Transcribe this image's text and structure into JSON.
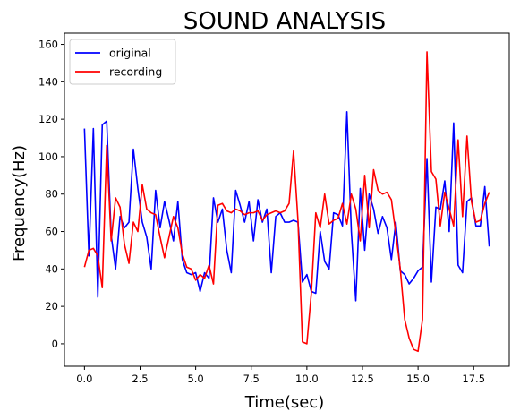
{
  "chart_data": {
    "type": "line",
    "title": "SOUND ANALYSIS",
    "xlabel": "Time(sec)",
    "ylabel": "Frequency(Hz)",
    "xlim": [
      -0.9,
      19.1
    ],
    "ylim": [
      -12,
      166
    ],
    "xticks": [
      0,
      2.5,
      5,
      7.5,
      10,
      12.5,
      15,
      17.5
    ],
    "xtick_labels": [
      "0.0",
      "2.5",
      "5.0",
      "7.5",
      "10.0",
      "12.5",
      "15.0",
      "17.5"
    ],
    "yticks": [
      0,
      20,
      40,
      60,
      80,
      100,
      120,
      140,
      160
    ],
    "ytick_labels": [
      "0",
      "20",
      "40",
      "60",
      "80",
      "100",
      "120",
      "140",
      "160"
    ],
    "grid": false,
    "legend_position": "upper-left",
    "series": [
      {
        "name": "original",
        "color": "#0000ff",
        "points": [
          [
            0.0,
            115
          ],
          [
            0.2,
            47
          ],
          [
            0.4,
            115
          ],
          [
            0.6,
            25
          ],
          [
            0.8,
            117
          ],
          [
            1.0,
            119
          ],
          [
            1.2,
            58
          ],
          [
            1.4,
            40
          ],
          [
            1.6,
            68
          ],
          [
            1.8,
            62
          ],
          [
            2.0,
            65
          ],
          [
            2.2,
            104
          ],
          [
            2.4,
            83
          ],
          [
            2.6,
            65
          ],
          [
            2.8,
            57
          ],
          [
            3.0,
            40
          ],
          [
            3.2,
            82
          ],
          [
            3.4,
            62
          ],
          [
            3.6,
            76
          ],
          [
            3.8,
            66
          ],
          [
            4.0,
            55
          ],
          [
            4.2,
            76
          ],
          [
            4.4,
            45
          ],
          [
            4.6,
            38
          ],
          [
            4.8,
            37
          ],
          [
            5.0,
            38
          ],
          [
            5.2,
            28
          ],
          [
            5.4,
            38
          ],
          [
            5.6,
            35
          ],
          [
            5.8,
            78
          ],
          [
            6.0,
            65
          ],
          [
            6.2,
            72
          ],
          [
            6.4,
            50
          ],
          [
            6.6,
            38
          ],
          [
            6.8,
            82
          ],
          [
            7.0,
            74
          ],
          [
            7.2,
            65
          ],
          [
            7.4,
            76
          ],
          [
            7.6,
            55
          ],
          [
            7.8,
            77
          ],
          [
            8.0,
            65
          ],
          [
            8.2,
            72
          ],
          [
            8.4,
            38
          ],
          [
            8.6,
            68
          ],
          [
            8.8,
            70
          ],
          [
            9.0,
            65
          ],
          [
            9.2,
            65
          ],
          [
            9.4,
            66
          ],
          [
            9.6,
            65
          ],
          [
            9.8,
            33
          ],
          [
            10.0,
            37
          ],
          [
            10.2,
            28
          ],
          [
            10.4,
            27
          ],
          [
            10.6,
            60
          ],
          [
            10.8,
            44
          ],
          [
            11.0,
            40
          ],
          [
            11.2,
            70
          ],
          [
            11.4,
            69
          ],
          [
            11.6,
            63
          ],
          [
            11.8,
            124
          ],
          [
            12.0,
            60
          ],
          [
            12.2,
            23
          ],
          [
            12.4,
            83
          ],
          [
            12.6,
            50
          ],
          [
            12.8,
            80
          ],
          [
            13.0,
            72
          ],
          [
            13.2,
            59
          ],
          [
            13.4,
            68
          ],
          [
            13.6,
            62
          ],
          [
            13.8,
            45
          ],
          [
            14.0,
            65
          ],
          [
            14.2,
            39
          ],
          [
            14.4,
            37
          ],
          [
            14.6,
            32
          ],
          [
            14.8,
            35
          ],
          [
            15.0,
            39
          ],
          [
            15.2,
            41
          ],
          [
            15.4,
            99
          ],
          [
            15.6,
            33
          ],
          [
            15.8,
            73
          ],
          [
            16.0,
            72
          ],
          [
            16.2,
            87
          ],
          [
            16.4,
            60
          ],
          [
            16.6,
            118
          ],
          [
            16.8,
            42
          ],
          [
            17.0,
            38
          ],
          [
            17.2,
            76
          ],
          [
            17.4,
            78
          ],
          [
            17.6,
            63
          ],
          [
            17.8,
            63
          ],
          [
            18.0,
            84
          ],
          [
            18.2,
            52
          ]
        ]
      },
      {
        "name": "recording",
        "color": "#ff0000",
        "points": [
          [
            0.0,
            41
          ],
          [
            0.2,
            50
          ],
          [
            0.4,
            51
          ],
          [
            0.6,
            47
          ],
          [
            0.8,
            30
          ],
          [
            1.0,
            106
          ],
          [
            1.2,
            55
          ],
          [
            1.4,
            78
          ],
          [
            1.6,
            73
          ],
          [
            1.8,
            53
          ],
          [
            2.0,
            43
          ],
          [
            2.2,
            65
          ],
          [
            2.4,
            60
          ],
          [
            2.6,
            85
          ],
          [
            2.8,
            72
          ],
          [
            3.0,
            70
          ],
          [
            3.2,
            69
          ],
          [
            3.4,
            57
          ],
          [
            3.6,
            46
          ],
          [
            3.8,
            57
          ],
          [
            4.0,
            68
          ],
          [
            4.2,
            62
          ],
          [
            4.4,
            48
          ],
          [
            4.6,
            41
          ],
          [
            4.8,
            40
          ],
          [
            5.0,
            34
          ],
          [
            5.2,
            37
          ],
          [
            5.4,
            35
          ],
          [
            5.6,
            42
          ],
          [
            5.8,
            32
          ],
          [
            6.0,
            74
          ],
          [
            6.2,
            75
          ],
          [
            6.4,
            71
          ],
          [
            6.6,
            70
          ],
          [
            6.8,
            72
          ],
          [
            7.0,
            71
          ],
          [
            7.2,
            69
          ],
          [
            7.4,
            70
          ],
          [
            7.6,
            70
          ],
          [
            7.8,
            71
          ],
          [
            8.0,
            66
          ],
          [
            8.2,
            69
          ],
          [
            8.4,
            70
          ],
          [
            8.6,
            71
          ],
          [
            8.8,
            70
          ],
          [
            9.0,
            71
          ],
          [
            9.2,
            75
          ],
          [
            9.4,
            103
          ],
          [
            9.6,
            66
          ],
          [
            9.8,
            1
          ],
          [
            10.0,
            0
          ],
          [
            10.2,
            27
          ],
          [
            10.4,
            70
          ],
          [
            10.6,
            62
          ],
          [
            10.8,
            80
          ],
          [
            11.0,
            64
          ],
          [
            11.2,
            66
          ],
          [
            11.4,
            67
          ],
          [
            11.6,
            75
          ],
          [
            11.8,
            64
          ],
          [
            12.0,
            80
          ],
          [
            12.2,
            72
          ],
          [
            12.4,
            55
          ],
          [
            12.6,
            90
          ],
          [
            12.8,
            62
          ],
          [
            13.0,
            93
          ],
          [
            13.2,
            82
          ],
          [
            13.4,
            80
          ],
          [
            13.6,
            81
          ],
          [
            13.8,
            77
          ],
          [
            14.0,
            59
          ],
          [
            14.2,
            40
          ],
          [
            14.4,
            13
          ],
          [
            14.6,
            3
          ],
          [
            14.8,
            -3
          ],
          [
            15.0,
            -4
          ],
          [
            15.2,
            13
          ],
          [
            15.4,
            156
          ],
          [
            15.6,
            92
          ],
          [
            15.8,
            88
          ],
          [
            16.0,
            63
          ],
          [
            16.2,
            81
          ],
          [
            16.4,
            72
          ],
          [
            16.6,
            63
          ],
          [
            16.8,
            109
          ],
          [
            17.0,
            68
          ],
          [
            17.2,
            111
          ],
          [
            17.4,
            76
          ],
          [
            17.6,
            65
          ],
          [
            17.8,
            66
          ],
          [
            18.0,
            75
          ],
          [
            18.2,
            81
          ]
        ]
      }
    ]
  }
}
